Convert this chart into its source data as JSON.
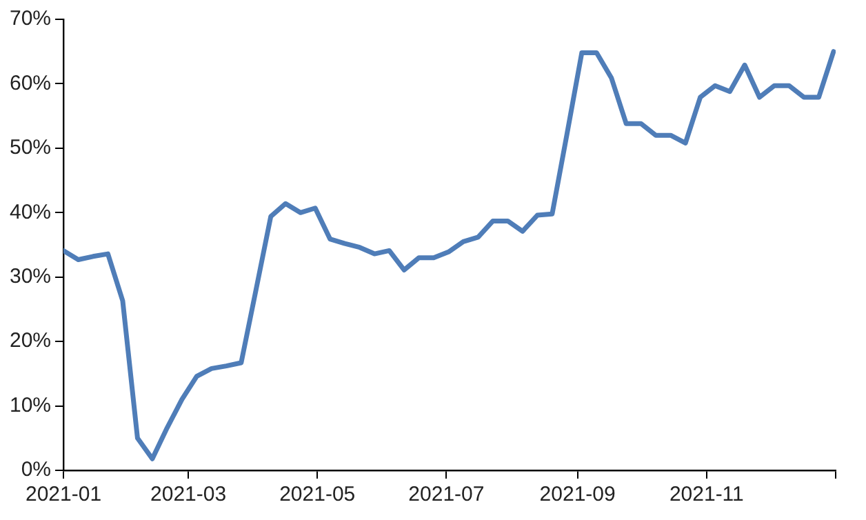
{
  "chart_data": {
    "type": "line",
    "grid": false,
    "legend": false,
    "marker": "none",
    "line_style": "solid",
    "x": [
      "2021-01-01",
      "2021-01-08",
      "2021-01-15",
      "2021-01-22",
      "2021-01-29",
      "2021-02-05",
      "2021-02-12",
      "2021-02-19",
      "2021-02-26",
      "2021-03-05",
      "2021-03-12",
      "2021-03-19",
      "2021-03-26",
      "2021-04-02",
      "2021-04-09",
      "2021-04-16",
      "2021-04-23",
      "2021-04-30",
      "2021-05-07",
      "2021-05-14",
      "2021-05-21",
      "2021-05-28",
      "2021-06-04",
      "2021-06-11",
      "2021-06-18",
      "2021-06-25",
      "2021-07-02",
      "2021-07-09",
      "2021-07-16",
      "2021-07-23",
      "2021-07-30",
      "2021-08-06",
      "2021-08-13",
      "2021-08-20",
      "2021-08-27",
      "2021-09-03",
      "2021-09-10",
      "2021-09-17",
      "2021-09-24",
      "2021-10-01",
      "2021-10-08",
      "2021-10-15",
      "2021-10-22",
      "2021-10-29",
      "2021-11-05",
      "2021-11-12",
      "2021-11-19",
      "2021-11-26",
      "2021-12-03",
      "2021-12-10",
      "2021-12-17",
      "2021-12-24",
      "2021-12-31"
    ],
    "series": [
      {
        "color": "#4f7db8",
        "values": [
          34.1,
          32.7,
          33.2,
          33.6,
          26.3,
          5.0,
          1.8,
          6.6,
          11,
          14.6,
          15.8,
          16.2,
          16.7,
          28,
          39.4,
          41.4,
          40,
          40.7,
          35.9,
          35.2,
          34.6,
          33.6,
          34.1,
          31.1,
          33,
          33,
          33.9,
          35.5,
          36.2,
          38.7,
          38.7,
          37.1,
          39.6,
          39.8,
          52.2,
          64.8,
          64.8,
          60.9,
          53.8,
          53.8,
          52,
          52,
          50.8,
          57.9,
          59.7,
          58.8,
          62.9,
          57.9,
          59.7,
          59.7,
          57.9,
          57.9,
          65
        ]
      }
    ],
    "ylim": [
      0,
      70
    ],
    "yticks": [
      {
        "value": 0,
        "label": "0%"
      },
      {
        "value": 10,
        "label": "10%"
      },
      {
        "value": 20,
        "label": "20%"
      },
      {
        "value": 30,
        "label": "30%"
      },
      {
        "value": 40,
        "label": "40%"
      },
      {
        "value": 50,
        "label": "50%"
      },
      {
        "value": 60,
        "label": "60%"
      },
      {
        "value": 70,
        "label": "70%"
      }
    ],
    "xlim": [
      "2021-01",
      "2022-01"
    ],
    "xticks": [
      {
        "value": "2021-01",
        "label": "2021-01"
      },
      {
        "value": "2021-03",
        "label": "2021-03"
      },
      {
        "value": "2021-05",
        "label": "2021-05"
      },
      {
        "value": "2021-07",
        "label": "2021-07"
      },
      {
        "value": "2021-09",
        "label": "2021-09"
      },
      {
        "value": "2021-11",
        "label": "2021-11"
      },
      {
        "value": "2022-01",
        "label": null
      }
    ]
  }
}
